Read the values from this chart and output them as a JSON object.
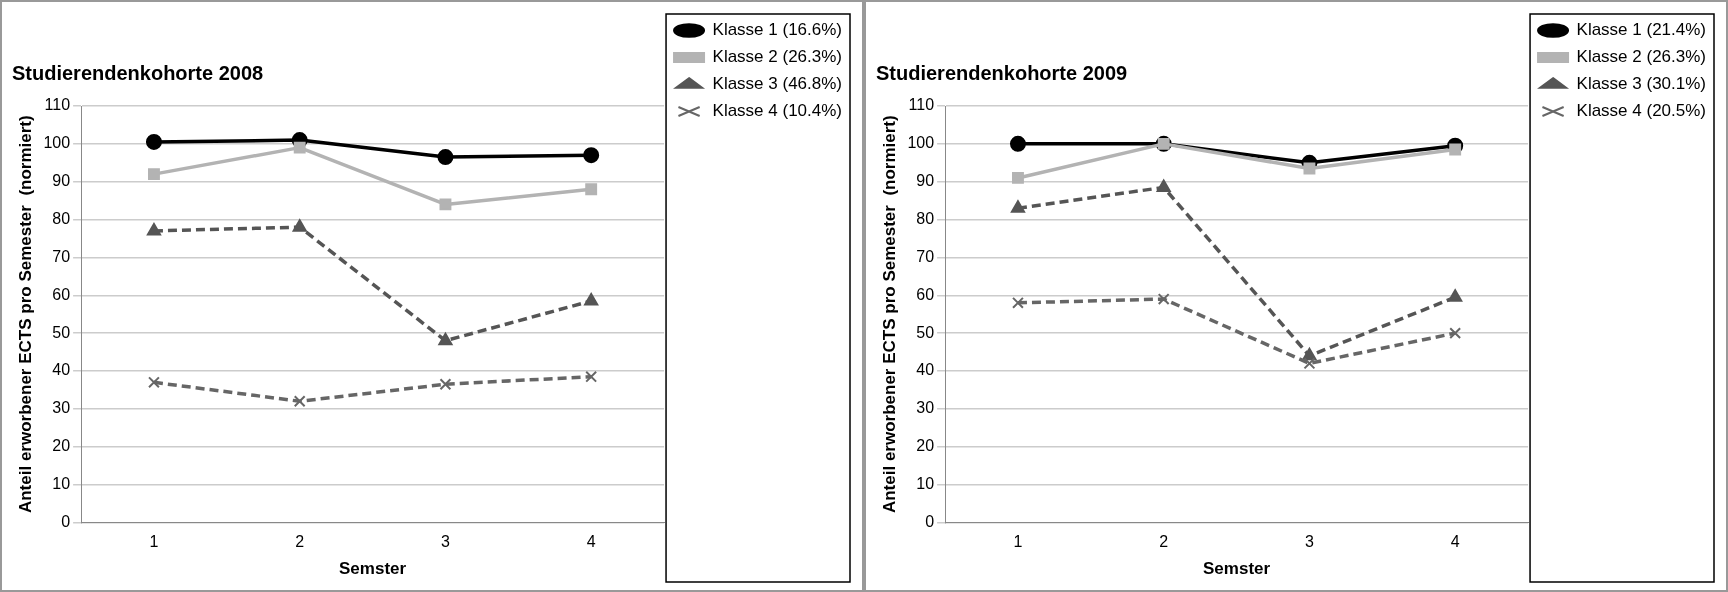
{
  "chart_data": [
    {
      "type": "line",
      "title": "Studierendenkohorte 2008",
      "xlabel": "Semster",
      "ylabel": "Anteil erworbener ECTS pro Semester  (normiert)",
      "categories": [
        "1",
        "2",
        "3",
        "4"
      ],
      "ylim": [
        0,
        110
      ],
      "yticks": [
        0,
        10,
        20,
        30,
        40,
        50,
        60,
        70,
        80,
        90,
        100,
        110
      ],
      "grid": "y",
      "legend": "top right",
      "series": [
        {
          "name": "Klasse 1 (16.6%)",
          "color": "#000000",
          "marker": "circle",
          "line_style": "solid",
          "values": [
            100.5,
            101,
            96.5,
            97
          ]
        },
        {
          "name": "Klasse 2 (26.3%)",
          "color": "#b3b3b3",
          "marker": "square",
          "line_style": "solid",
          "values": [
            92,
            99,
            84,
            88
          ]
        },
        {
          "name": "Klasse 3 (46.8%)",
          "color": "#555555",
          "marker": "triangle",
          "line_style": "dashed",
          "values": [
            77,
            78,
            48,
            58.5
          ]
        },
        {
          "name": "Klasse 4 (10.4%)",
          "color": "#666666",
          "marker": "cross",
          "line_style": "dashed",
          "values": [
            37,
            32,
            36.5,
            38.5
          ]
        }
      ]
    },
    {
      "type": "line",
      "title": "Studierendenkohorte 2009",
      "xlabel": "Semster",
      "ylabel": "Anteil erworbener ECTS pro Semester  (normiert)",
      "categories": [
        "1",
        "2",
        "3",
        "4"
      ],
      "ylim": [
        0,
        110
      ],
      "yticks": [
        0,
        10,
        20,
        30,
        40,
        50,
        60,
        70,
        80,
        90,
        100,
        110
      ],
      "grid": "y",
      "legend": "top right",
      "series": [
        {
          "name": "Klasse 1 (21.4%)",
          "color": "#000000",
          "marker": "circle",
          "line_style": "solid",
          "values": [
            100,
            100,
            95,
            99.5
          ]
        },
        {
          "name": "Klasse 2 (26.3%)",
          "color": "#b3b3b3",
          "marker": "square",
          "line_style": "solid",
          "values": [
            91,
            100,
            93.5,
            98.5
          ]
        },
        {
          "name": "Klasse 3 (30.1%)",
          "color": "#555555",
          "marker": "triangle",
          "line_style": "dashed",
          "values": [
            83,
            88.5,
            44,
            59.5
          ]
        },
        {
          "name": "Klasse 4 (20.5%)",
          "color": "#666666",
          "marker": "cross",
          "line_style": "dashed",
          "values": [
            58,
            59,
            42,
            50
          ]
        }
      ]
    }
  ]
}
